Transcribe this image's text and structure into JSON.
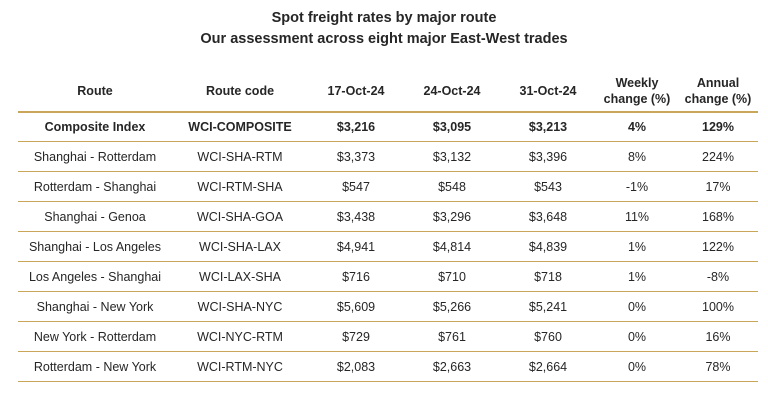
{
  "header": {
    "title": "Spot freight rates by major route",
    "subtitle": "Our assessment across eight major East-West trades"
  },
  "table": {
    "columns": {
      "route": "Route",
      "code": "Route code",
      "d1": "17-Oct-24",
      "d2": "24-Oct-24",
      "d3": "31-Oct-24",
      "weekly_1": "Weekly",
      "weekly_2": "change (%)",
      "annual_1": "Annual",
      "annual_2": "change (%)"
    },
    "rows": [
      {
        "route": "Composite Index",
        "code": "WCI-COMPOSITE",
        "d1": "$3,216",
        "d2": "$3,095",
        "d3": "$3,213",
        "weekly": "4%",
        "annual": "129%"
      },
      {
        "route": "Shanghai - Rotterdam",
        "code": "WCI-SHA-RTM",
        "d1": "$3,373",
        "d2": "$3,132",
        "d3": "$3,396",
        "weekly": "8%",
        "annual": "224%"
      },
      {
        "route": "Rotterdam - Shanghai",
        "code": "WCI-RTM-SHA",
        "d1": "$547",
        "d2": "$548",
        "d3": "$543",
        "weekly": "-1%",
        "annual": "17%"
      },
      {
        "route": "Shanghai - Genoa",
        "code": "WCI-SHA-GOA",
        "d1": "$3,438",
        "d2": "$3,296",
        "d3": "$3,648",
        "weekly": "11%",
        "annual": "168%"
      },
      {
        "route": "Shanghai - Los Angeles",
        "code": "WCI-SHA-LAX",
        "d1": "$4,941",
        "d2": "$4,814",
        "d3": "$4,839",
        "weekly": "1%",
        "annual": "122%"
      },
      {
        "route": "Los Angeles - Shanghai",
        "code": "WCI-LAX-SHA",
        "d1": "$716",
        "d2": "$710",
        "d3": "$718",
        "weekly": "1%",
        "annual": "-8%"
      },
      {
        "route": "Shanghai - New York",
        "code": "WCI-SHA-NYC",
        "d1": "$5,609",
        "d2": "$5,266",
        "d3": "$5,241",
        "weekly": "0%",
        "annual": "100%"
      },
      {
        "route": "New York - Rotterdam",
        "code": "WCI-NYC-RTM",
        "d1": "$729",
        "d2": "$761",
        "d3": "$760",
        "weekly": "0%",
        "annual": "16%"
      },
      {
        "route": "Rotterdam - New York",
        "code": "WCI-RTM-NYC",
        "d1": "$2,083",
        "d2": "$2,663",
        "d3": "$2,664",
        "weekly": "0%",
        "annual": "78%"
      }
    ]
  },
  "colors": {
    "rule": "#c9a659",
    "text": "#262626"
  }
}
